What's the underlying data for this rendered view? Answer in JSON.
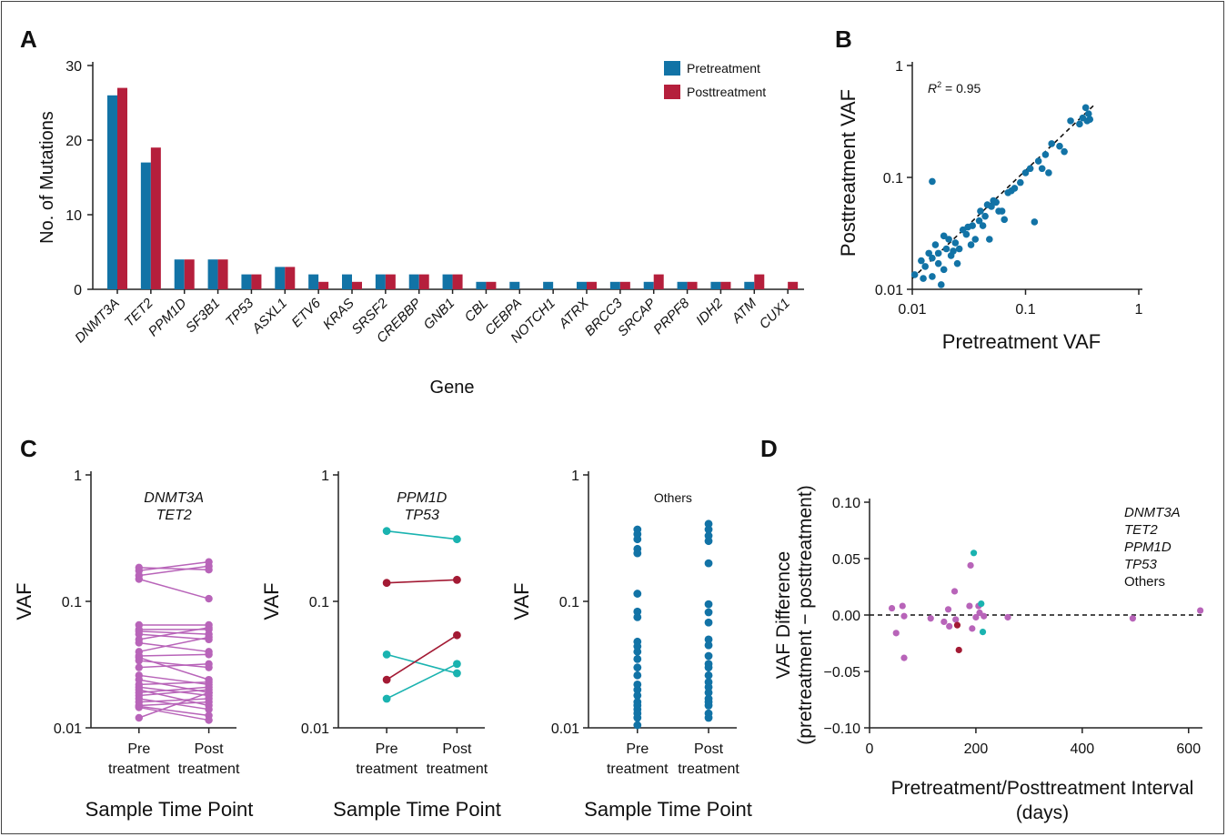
{
  "chart_data": [
    {
      "panel": "A",
      "type": "bar",
      "xlabel": "Gene",
      "ylabel": "No. of Mutations",
      "ylim": [
        0,
        30
      ],
      "yticks": [
        0,
        10,
        20,
        30
      ],
      "legend_position": "top-right",
      "categories": [
        "DNMT3A",
        "TET2",
        "PPM1D",
        "SF3B1",
        "TP53",
        "ASXL1",
        "ETV6",
        "KRAS",
        "SRSF2",
        "CREBBP",
        "GNB1",
        "CBL",
        "CEBPA",
        "NOTCH1",
        "ATRX",
        "BRCC3",
        "SRCAP",
        "PRPF8",
        "IDH2",
        "ATM",
        "CUX1"
      ],
      "series": [
        {
          "name": "Pretreatment",
          "color": "#1273a6",
          "values": [
            26,
            17,
            4,
            4,
            2,
            3,
            2,
            2,
            2,
            2,
            2,
            1,
            1,
            1,
            1,
            1,
            1,
            1,
            1,
            1,
            0
          ]
        },
        {
          "name": "Posttreatment",
          "color": "#b51f3c",
          "values": [
            27,
            19,
            4,
            4,
            2,
            3,
            1,
            1,
            2,
            2,
            2,
            1,
            0,
            0,
            1,
            1,
            2,
            1,
            1,
            2,
            1
          ]
        }
      ]
    },
    {
      "panel": "B",
      "type": "scatter",
      "xlabel": "Pretreatment VAF",
      "ylabel": "Posttreatment VAF",
      "scale": "log",
      "xlim": [
        0.01,
        1
      ],
      "ylim": [
        0.01,
        1
      ],
      "ticks": [
        0.01,
        0.1,
        1
      ],
      "tick_labels": [
        "0.01",
        "0.1",
        "1"
      ],
      "annotation_label": "R",
      "annotation_sup": "2",
      "annotation_value": " = 0.95",
      "color": "#1273a6",
      "fit_line": "dashed",
      "points": [
        [
          0.0105,
          0.0135
        ],
        [
          0.012,
          0.018
        ],
        [
          0.0125,
          0.0125
        ],
        [
          0.013,
          0.016
        ],
        [
          0.014,
          0.021
        ],
        [
          0.015,
          0.019
        ],
        [
          0.015,
          0.013
        ],
        [
          0.016,
          0.025
        ],
        [
          0.017,
          0.017
        ],
        [
          0.017,
          0.021
        ],
        [
          0.018,
          0.011
        ],
        [
          0.019,
          0.03
        ],
        [
          0.019,
          0.015
        ],
        [
          0.02,
          0.023
        ],
        [
          0.021,
          0.028
        ],
        [
          0.022,
          0.02
        ],
        [
          0.023,
          0.022
        ],
        [
          0.024,
          0.026
        ],
        [
          0.025,
          0.017
        ],
        [
          0.026,
          0.023
        ],
        [
          0.028,
          0.034
        ],
        [
          0.03,
          0.031
        ],
        [
          0.031,
          0.036
        ],
        [
          0.033,
          0.025
        ],
        [
          0.034,
          0.037
        ],
        [
          0.036,
          0.028
        ],
        [
          0.039,
          0.041
        ],
        [
          0.04,
          0.05
        ],
        [
          0.042,
          0.037
        ],
        [
          0.044,
          0.045
        ],
        [
          0.046,
          0.057
        ],
        [
          0.048,
          0.028
        ],
        [
          0.05,
          0.055
        ],
        [
          0.052,
          0.062
        ],
        [
          0.055,
          0.06
        ],
        [
          0.058,
          0.05
        ],
        [
          0.062,
          0.05
        ],
        [
          0.065,
          0.042
        ],
        [
          0.07,
          0.073
        ],
        [
          0.075,
          0.076
        ],
        [
          0.08,
          0.08
        ],
        [
          0.09,
          0.09
        ],
        [
          0.1,
          0.11
        ],
        [
          0.11,
          0.12
        ],
        [
          0.12,
          0.04
        ],
        [
          0.13,
          0.14
        ],
        [
          0.14,
          0.12
        ],
        [
          0.15,
          0.16
        ],
        [
          0.16,
          0.11
        ],
        [
          0.17,
          0.2
        ],
        [
          0.2,
          0.19
        ],
        [
          0.22,
          0.17
        ],
        [
          0.25,
          0.32
        ],
        [
          0.3,
          0.3
        ],
        [
          0.32,
          0.34
        ],
        [
          0.34,
          0.42
        ],
        [
          0.35,
          0.32
        ],
        [
          0.36,
          0.37
        ],
        [
          0.37,
          0.33
        ],
        [
          0.015,
          0.092
        ]
      ]
    },
    {
      "panel": "C1",
      "type": "line",
      "xlabel": "Sample Time Point",
      "ylabel": "VAF",
      "scale": "log",
      "ylim": [
        0.01,
        1
      ],
      "ticks": [
        0.01,
        0.1,
        1
      ],
      "tick_labels": [
        "0.01",
        "0.1",
        "1"
      ],
      "categories": [
        [
          "Pre",
          "treatment"
        ],
        [
          "Post",
          "treatment"
        ]
      ],
      "legend": [
        {
          "name": "DNMT3A",
          "color": "#b864b9",
          "italic": true
        },
        {
          "name": "TET2",
          "color": "#8c8c8c",
          "italic": true
        }
      ],
      "color": "#b864b9",
      "pairs": [
        [
          0.185,
          0.178
        ],
        [
          0.175,
          0.205
        ],
        [
          0.16,
          0.19
        ],
        [
          0.15,
          0.105
        ],
        [
          0.065,
          0.065
        ],
        [
          0.06,
          0.06
        ],
        [
          0.058,
          0.055
        ],
        [
          0.055,
          0.05
        ],
        [
          0.05,
          0.062
        ],
        [
          0.047,
          0.04
        ],
        [
          0.04,
          0.052
        ],
        [
          0.037,
          0.038
        ],
        [
          0.036,
          0.024
        ],
        [
          0.034,
          0.03
        ],
        [
          0.03,
          0.032
        ],
        [
          0.026,
          0.022
        ],
        [
          0.024,
          0.019
        ],
        [
          0.022,
          0.023
        ],
        [
          0.021,
          0.018
        ],
        [
          0.02,
          0.015
        ],
        [
          0.019,
          0.021
        ],
        [
          0.018,
          0.02
        ],
        [
          0.017,
          0.014
        ],
        [
          0.016,
          0.017
        ],
        [
          0.015,
          0.016
        ],
        [
          0.0148,
          0.0125
        ],
        [
          0.0145,
          0.0115
        ],
        [
          0.012,
          0.019
        ]
      ]
    },
    {
      "panel": "C2",
      "type": "line",
      "xlabel": "Sample Time Point",
      "ylabel": "VAF",
      "scale": "log",
      "ylim": [
        0.01,
        1
      ],
      "ticks": [
        0.01,
        0.1,
        1
      ],
      "tick_labels": [
        "0.01",
        "0.1",
        "1"
      ],
      "categories": [
        [
          "Pre",
          "treatment"
        ],
        [
          "Post",
          "treatment"
        ]
      ],
      "legend": [
        {
          "name": "PPM1D",
          "color": "#1ab3b0",
          "italic": true
        },
        {
          "name": "TP53",
          "color": "#a31a34",
          "italic": true
        }
      ],
      "lines": [
        {
          "color": "#1ab3b0",
          "pair": [
            0.36,
            0.31
          ]
        },
        {
          "color": "#a31a34",
          "pair": [
            0.14,
            0.148
          ]
        },
        {
          "color": "#1ab3b0",
          "pair": [
            0.038,
            0.027
          ]
        },
        {
          "color": "#a31a34",
          "pair": [
            0.024,
            0.054
          ]
        },
        {
          "color": "#1ab3b0",
          "pair": [
            0.017,
            0.032
          ]
        }
      ]
    },
    {
      "panel": "C3",
      "type": "scatter",
      "xlabel": "Sample Time Point",
      "ylabel": "VAF",
      "scale": "log",
      "ylim": [
        0.01,
        1
      ],
      "ticks": [
        0.01,
        0.1,
        1
      ],
      "tick_labels": [
        "0.01",
        "0.1",
        "1"
      ],
      "categories": [
        [
          "Pre",
          "treatment"
        ],
        [
          "Post",
          "treatment"
        ]
      ],
      "legend": [
        {
          "name": "Others",
          "color": "#111",
          "italic": false
        }
      ],
      "color": "#1273a6",
      "pre": [
        0.37,
        0.34,
        0.31,
        0.26,
        0.24,
        0.115,
        0.083,
        0.075,
        0.048,
        0.044,
        0.04,
        0.035,
        0.03,
        0.026,
        0.022,
        0.02,
        0.018,
        0.016,
        0.015,
        0.014,
        0.013,
        0.012,
        0.0105
      ],
      "post": [
        0.41,
        0.37,
        0.33,
        0.3,
        0.2,
        0.095,
        0.082,
        0.068,
        0.05,
        0.045,
        0.037,
        0.032,
        0.03,
        0.026,
        0.023,
        0.021,
        0.019,
        0.017,
        0.016,
        0.015,
        0.013,
        0.012
      ]
    },
    {
      "panel": "D",
      "type": "scatter",
      "xlabel": "Pretreatment/Posttreatment Interval",
      "xlabel2": "(days)",
      "ylabel": "VAF Difference",
      "ylabel2": "(pretreatment − posttreatment)",
      "xlim": [
        0,
        650
      ],
      "ylim": [
        -0.1,
        0.1
      ],
      "xticks": [
        0,
        200,
        400,
        600
      ],
      "yticks": [
        -0.1,
        -0.05,
        0,
        0.05,
        0.1
      ],
      "ytick_labels": [
        "−0.10",
        "−0.05",
        "0.00",
        "0.05",
        "0.10"
      ],
      "legend_position": "top-right",
      "legend": [
        {
          "name": "DNMT3A",
          "color": "#b864b9",
          "italic": true
        },
        {
          "name": "TET2",
          "color": "#8c8c8c",
          "italic": true
        },
        {
          "name": "PPM1D",
          "color": "#1ab3b0",
          "italic": true
        },
        {
          "name": "TP53",
          "color": "#a31a34",
          "italic": true
        },
        {
          "name": "Others",
          "color": "#1273a6",
          "italic": false
        }
      ],
      "points": [
        {
          "x": 42,
          "y": 0.006,
          "c": "#b864b9"
        },
        {
          "x": 50,
          "y": -0.016,
          "c": "#b864b9"
        },
        {
          "x": 62,
          "y": 0.008,
          "c": "#b864b9"
        },
        {
          "x": 65,
          "y": -0.038,
          "c": "#b864b9"
        },
        {
          "x": 65,
          "y": -0.001,
          "c": "#b864b9"
        },
        {
          "x": 115,
          "y": -0.003,
          "c": "#b864b9"
        },
        {
          "x": 140,
          "y": -0.006,
          "c": "#b864b9"
        },
        {
          "x": 148,
          "y": 0.005,
          "c": "#b864b9"
        },
        {
          "x": 150,
          "y": -0.01,
          "c": "#b864b9"
        },
        {
          "x": 160,
          "y": 0.021,
          "c": "#b864b9"
        },
        {
          "x": 162,
          "y": -0.004,
          "c": "#b864b9"
        },
        {
          "x": 165,
          "y": -0.009,
          "c": "#a31a34"
        },
        {
          "x": 168,
          "y": -0.031,
          "c": "#a31a34"
        },
        {
          "x": 188,
          "y": 0.008,
          "c": "#b864b9"
        },
        {
          "x": 190,
          "y": 0.044,
          "c": "#b864b9"
        },
        {
          "x": 193,
          "y": -0.012,
          "c": "#b864b9"
        },
        {
          "x": 196,
          "y": 0.055,
          "c": "#1ab3b0"
        },
        {
          "x": 200,
          "y": -0.002,
          "c": "#b864b9"
        },
        {
          "x": 205,
          "y": 0.008,
          "c": "#b864b9"
        },
        {
          "x": 207,
          "y": 0.002,
          "c": "#b864b9"
        },
        {
          "x": 210,
          "y": 0.01,
          "c": "#1ab3b0"
        },
        {
          "x": 213,
          "y": -0.015,
          "c": "#1ab3b0"
        },
        {
          "x": 215,
          "y": -0.001,
          "c": "#b864b9"
        },
        {
          "x": 260,
          "y": -0.002,
          "c": "#b864b9"
        },
        {
          "x": 495,
          "y": -0.003,
          "c": "#b864b9"
        },
        {
          "x": 622,
          "y": 0.004,
          "c": "#b864b9"
        }
      ]
    }
  ],
  "panel_labels": [
    "A",
    "B",
    "C",
    "D"
  ]
}
